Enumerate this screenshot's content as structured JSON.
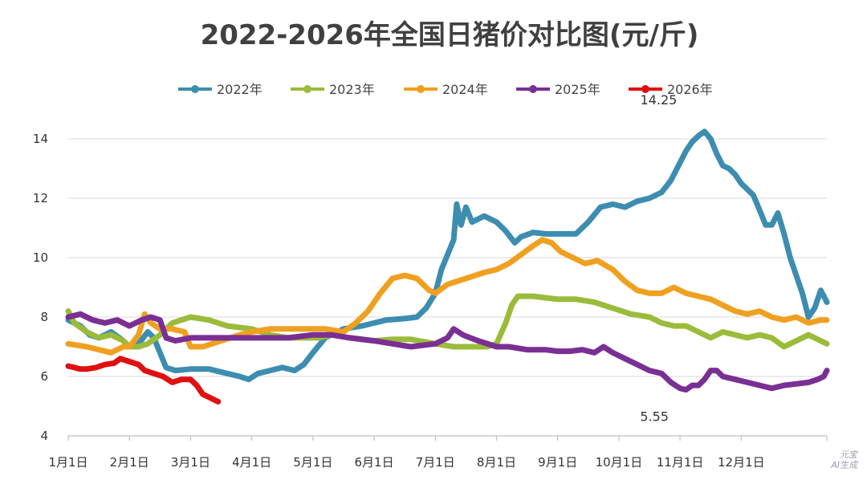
{
  "chart_data": {
    "type": "line",
    "title": "2022-2026年全国日猪价对比图(元/斤)",
    "xlabel": "",
    "ylabel": "",
    "ylim": [
      4,
      15
    ],
    "yticks": [
      4,
      6,
      8,
      10,
      12,
      14
    ],
    "x_tick_labels": [
      "1月1日",
      "2月1日",
      "3月1日",
      "4月1日",
      "5月1日",
      "6月1日",
      "7月1日",
      "8月1日",
      "9月1日",
      "10月1日",
      "11月1日",
      "12月1日"
    ],
    "x_unit": "month (0 = Jan 1, 12 = Dec 31)",
    "grid": true,
    "legend_position": "top",
    "annotations": [
      {
        "text": "14.25",
        "x": 9.65,
        "y": 14.25
      },
      {
        "text": "5.55",
        "x": 9.45,
        "y": 5.55
      }
    ],
    "series": [
      {
        "name": "2022年",
        "color": "#3d8db0",
        "points": [
          [
            0,
            7.9
          ],
          [
            0.2,
            7.7
          ],
          [
            0.35,
            7.4
          ],
          [
            0.5,
            7.3
          ],
          [
            0.7,
            7.5
          ],
          [
            0.9,
            7.2
          ],
          [
            1.0,
            7.0
          ],
          [
            1.15,
            7.1
          ],
          [
            1.3,
            7.5
          ],
          [
            1.4,
            7.3
          ],
          [
            1.5,
            6.8
          ],
          [
            1.6,
            6.3
          ],
          [
            1.75,
            6.2
          ],
          [
            2.0,
            6.25
          ],
          [
            2.3,
            6.25
          ],
          [
            2.6,
            6.1
          ],
          [
            2.8,
            6.0
          ],
          [
            2.95,
            5.9
          ],
          [
            3.1,
            6.1
          ],
          [
            3.3,
            6.2
          ],
          [
            3.5,
            6.3
          ],
          [
            3.7,
            6.2
          ],
          [
            3.85,
            6.4
          ],
          [
            4.0,
            6.8
          ],
          [
            4.2,
            7.3
          ],
          [
            4.5,
            7.6
          ],
          [
            4.8,
            7.7
          ],
          [
            5.0,
            7.8
          ],
          [
            5.2,
            7.9
          ],
          [
            5.5,
            7.95
          ],
          [
            5.7,
            8.0
          ],
          [
            5.85,
            8.3
          ],
          [
            6.0,
            8.8
          ],
          [
            6.1,
            9.6
          ],
          [
            6.2,
            10.1
          ],
          [
            6.3,
            10.6
          ],
          [
            6.35,
            11.8
          ],
          [
            6.42,
            11.1
          ],
          [
            6.5,
            11.7
          ],
          [
            6.6,
            11.2
          ],
          [
            6.8,
            11.4
          ],
          [
            7.0,
            11.2
          ],
          [
            7.15,
            10.9
          ],
          [
            7.3,
            10.5
          ],
          [
            7.4,
            10.7
          ],
          [
            7.6,
            10.85
          ],
          [
            7.8,
            10.8
          ],
          [
            8.0,
            10.8
          ],
          [
            8.3,
            10.8
          ],
          [
            8.5,
            11.2
          ],
          [
            8.7,
            11.7
          ],
          [
            8.9,
            11.8
          ],
          [
            9.1,
            11.7
          ],
          [
            9.3,
            11.9
          ],
          [
            9.5,
            12.0
          ],
          [
            9.7,
            12.2
          ],
          [
            9.85,
            12.6
          ],
          [
            10.0,
            13.2
          ],
          [
            10.1,
            13.6
          ],
          [
            10.2,
            13.9
          ],
          [
            10.3,
            14.1
          ],
          [
            10.4,
            14.25
          ],
          [
            10.5,
            14.0
          ],
          [
            10.6,
            13.5
          ],
          [
            10.7,
            13.1
          ],
          [
            10.8,
            13.0
          ],
          [
            10.9,
            12.8
          ],
          [
            11.0,
            12.5
          ],
          [
            11.1,
            12.3
          ],
          [
            11.2,
            12.1
          ],
          [
            11.3,
            11.6
          ],
          [
            11.4,
            11.1
          ],
          [
            11.5,
            11.1
          ],
          [
            11.6,
            11.5
          ],
          [
            11.7,
            10.8
          ],
          [
            11.8,
            10.0
          ],
          [
            11.9,
            9.4
          ],
          [
            12.0,
            8.8
          ],
          [
            12.1,
            8.0
          ],
          [
            12.2,
            8.3
          ],
          [
            12.3,
            8.9
          ],
          [
            12.4,
            8.5
          ]
        ]
      },
      {
        "name": "2023年",
        "color": "#9bbb3b",
        "points": [
          [
            0,
            8.2
          ],
          [
            0.1,
            7.8
          ],
          [
            0.3,
            7.5
          ],
          [
            0.5,
            7.3
          ],
          [
            0.7,
            7.4
          ],
          [
            0.9,
            7.2
          ],
          [
            1.0,
            7.0
          ],
          [
            1.15,
            7.0
          ],
          [
            1.3,
            7.1
          ],
          [
            1.5,
            7.4
          ],
          [
            1.7,
            7.8
          ],
          [
            2.0,
            8.0
          ],
          [
            2.3,
            7.9
          ],
          [
            2.6,
            7.7
          ],
          [
            3.0,
            7.6
          ],
          [
            3.3,
            7.4
          ],
          [
            3.6,
            7.3
          ],
          [
            3.9,
            7.3
          ],
          [
            4.1,
            7.3
          ],
          [
            4.3,
            7.4
          ],
          [
            4.6,
            7.3
          ],
          [
            5.0,
            7.2
          ],
          [
            5.3,
            7.25
          ],
          [
            5.6,
            7.25
          ],
          [
            6.0,
            7.1
          ],
          [
            6.3,
            7.0
          ],
          [
            6.6,
            7.0
          ],
          [
            6.85,
            7.0
          ],
          [
            7.0,
            7.1
          ],
          [
            7.15,
            7.8
          ],
          [
            7.25,
            8.4
          ],
          [
            7.35,
            8.7
          ],
          [
            7.6,
            8.7
          ],
          [
            8.0,
            8.6
          ],
          [
            8.3,
            8.6
          ],
          [
            8.6,
            8.5
          ],
          [
            8.9,
            8.3
          ],
          [
            9.2,
            8.1
          ],
          [
            9.5,
            8.0
          ],
          [
            9.7,
            7.8
          ],
          [
            9.9,
            7.7
          ],
          [
            10.1,
            7.7
          ],
          [
            10.3,
            7.5
          ],
          [
            10.5,
            7.3
          ],
          [
            10.7,
            7.5
          ],
          [
            10.9,
            7.4
          ],
          [
            11.1,
            7.3
          ],
          [
            11.3,
            7.4
          ],
          [
            11.5,
            7.3
          ],
          [
            11.7,
            7.0
          ],
          [
            11.9,
            7.2
          ],
          [
            12.1,
            7.4
          ],
          [
            12.3,
            7.2
          ],
          [
            12.4,
            7.1
          ]
        ]
      },
      {
        "name": "2024年",
        "color": "#f0a020",
        "points": [
          [
            0,
            7.1
          ],
          [
            0.3,
            7.0
          ],
          [
            0.5,
            6.9
          ],
          [
            0.7,
            6.8
          ],
          [
            0.9,
            7.0
          ],
          [
            1.0,
            7.0
          ],
          [
            1.15,
            7.4
          ],
          [
            1.25,
            8.1
          ],
          [
            1.35,
            7.8
          ],
          [
            1.5,
            7.6
          ],
          [
            1.7,
            7.6
          ],
          [
            1.9,
            7.5
          ],
          [
            2.0,
            7.0
          ],
          [
            2.2,
            7.0
          ],
          [
            2.5,
            7.2
          ],
          [
            2.8,
            7.4
          ],
          [
            3.0,
            7.5
          ],
          [
            3.3,
            7.6
          ],
          [
            3.6,
            7.6
          ],
          [
            3.9,
            7.6
          ],
          [
            4.2,
            7.6
          ],
          [
            4.5,
            7.5
          ],
          [
            4.7,
            7.8
          ],
          [
            4.9,
            8.2
          ],
          [
            5.1,
            8.8
          ],
          [
            5.3,
            9.3
          ],
          [
            5.5,
            9.4
          ],
          [
            5.7,
            9.3
          ],
          [
            5.9,
            8.9
          ],
          [
            6.0,
            8.8
          ],
          [
            6.2,
            9.1
          ],
          [
            6.5,
            9.3
          ],
          [
            6.8,
            9.5
          ],
          [
            7.0,
            9.6
          ],
          [
            7.2,
            9.8
          ],
          [
            7.4,
            10.1
          ],
          [
            7.6,
            10.4
          ],
          [
            7.75,
            10.6
          ],
          [
            7.9,
            10.5
          ],
          [
            8.05,
            10.2
          ],
          [
            8.25,
            10.0
          ],
          [
            8.45,
            9.8
          ],
          [
            8.65,
            9.9
          ],
          [
            8.9,
            9.6
          ],
          [
            9.1,
            9.2
          ],
          [
            9.3,
            8.9
          ],
          [
            9.5,
            8.8
          ],
          [
            9.7,
            8.8
          ],
          [
            9.9,
            9.0
          ],
          [
            10.1,
            8.8
          ],
          [
            10.3,
            8.7
          ],
          [
            10.5,
            8.6
          ],
          [
            10.7,
            8.4
          ],
          [
            10.9,
            8.2
          ],
          [
            11.1,
            8.1
          ],
          [
            11.3,
            8.2
          ],
          [
            11.5,
            8.0
          ],
          [
            11.7,
            7.9
          ],
          [
            11.9,
            8.0
          ],
          [
            12.1,
            7.8
          ],
          [
            12.3,
            7.9
          ],
          [
            12.4,
            7.9
          ]
        ]
      },
      {
        "name": "2025年",
        "color": "#7a2f94",
        "points": [
          [
            0,
            8.0
          ],
          [
            0.2,
            8.1
          ],
          [
            0.4,
            7.9
          ],
          [
            0.6,
            7.8
          ],
          [
            0.8,
            7.9
          ],
          [
            1.0,
            7.7
          ],
          [
            1.2,
            7.9
          ],
          [
            1.35,
            8.0
          ],
          [
            1.5,
            7.9
          ],
          [
            1.6,
            7.3
          ],
          [
            1.75,
            7.2
          ],
          [
            2.0,
            7.3
          ],
          [
            2.3,
            7.3
          ],
          [
            2.6,
            7.3
          ],
          [
            3.0,
            7.3
          ],
          [
            3.3,
            7.3
          ],
          [
            3.6,
            7.3
          ],
          [
            4.0,
            7.4
          ],
          [
            4.3,
            7.4
          ],
          [
            4.6,
            7.3
          ],
          [
            5.0,
            7.2
          ],
          [
            5.3,
            7.1
          ],
          [
            5.6,
            7.0
          ],
          [
            6.0,
            7.1
          ],
          [
            6.2,
            7.3
          ],
          [
            6.3,
            7.6
          ],
          [
            6.45,
            7.4
          ],
          [
            6.7,
            7.2
          ],
          [
            7.0,
            7.0
          ],
          [
            7.2,
            7.0
          ],
          [
            7.5,
            6.9
          ],
          [
            7.8,
            6.9
          ],
          [
            8.0,
            6.85
          ],
          [
            8.2,
            6.85
          ],
          [
            8.4,
            6.9
          ],
          [
            8.6,
            6.8
          ],
          [
            8.75,
            7.0
          ],
          [
            8.9,
            6.8
          ],
          [
            9.1,
            6.6
          ],
          [
            9.3,
            6.4
          ],
          [
            9.5,
            6.2
          ],
          [
            9.7,
            6.1
          ],
          [
            9.85,
            5.8
          ],
          [
            10.0,
            5.6
          ],
          [
            10.1,
            5.55
          ],
          [
            10.2,
            5.7
          ],
          [
            10.3,
            5.7
          ],
          [
            10.4,
            5.9
          ],
          [
            10.5,
            6.2
          ],
          [
            10.6,
            6.2
          ],
          [
            10.7,
            6.0
          ],
          [
            10.9,
            5.9
          ],
          [
            11.1,
            5.8
          ],
          [
            11.3,
            5.7
          ],
          [
            11.5,
            5.6
          ],
          [
            11.7,
            5.7
          ],
          [
            11.9,
            5.75
          ],
          [
            12.1,
            5.8
          ],
          [
            12.25,
            5.9
          ],
          [
            12.35,
            6.0
          ],
          [
            12.4,
            6.2
          ]
        ]
      },
      {
        "name": "2026年",
        "color": "#e01010",
        "points": [
          [
            0,
            6.35
          ],
          [
            0.1,
            6.3
          ],
          [
            0.2,
            6.25
          ],
          [
            0.3,
            6.25
          ],
          [
            0.45,
            6.3
          ],
          [
            0.6,
            6.4
          ],
          [
            0.75,
            6.45
          ],
          [
            0.85,
            6.6
          ],
          [
            1.0,
            6.5
          ],
          [
            1.15,
            6.4
          ],
          [
            1.25,
            6.2
          ],
          [
            1.4,
            6.1
          ],
          [
            1.55,
            6.0
          ],
          [
            1.7,
            5.8
          ],
          [
            1.85,
            5.9
          ],
          [
            2.0,
            5.9
          ],
          [
            2.1,
            5.7
          ],
          [
            2.2,
            5.4
          ],
          [
            2.3,
            5.3
          ],
          [
            2.4,
            5.2
          ],
          [
            2.45,
            5.15
          ]
        ]
      }
    ]
  }
}
